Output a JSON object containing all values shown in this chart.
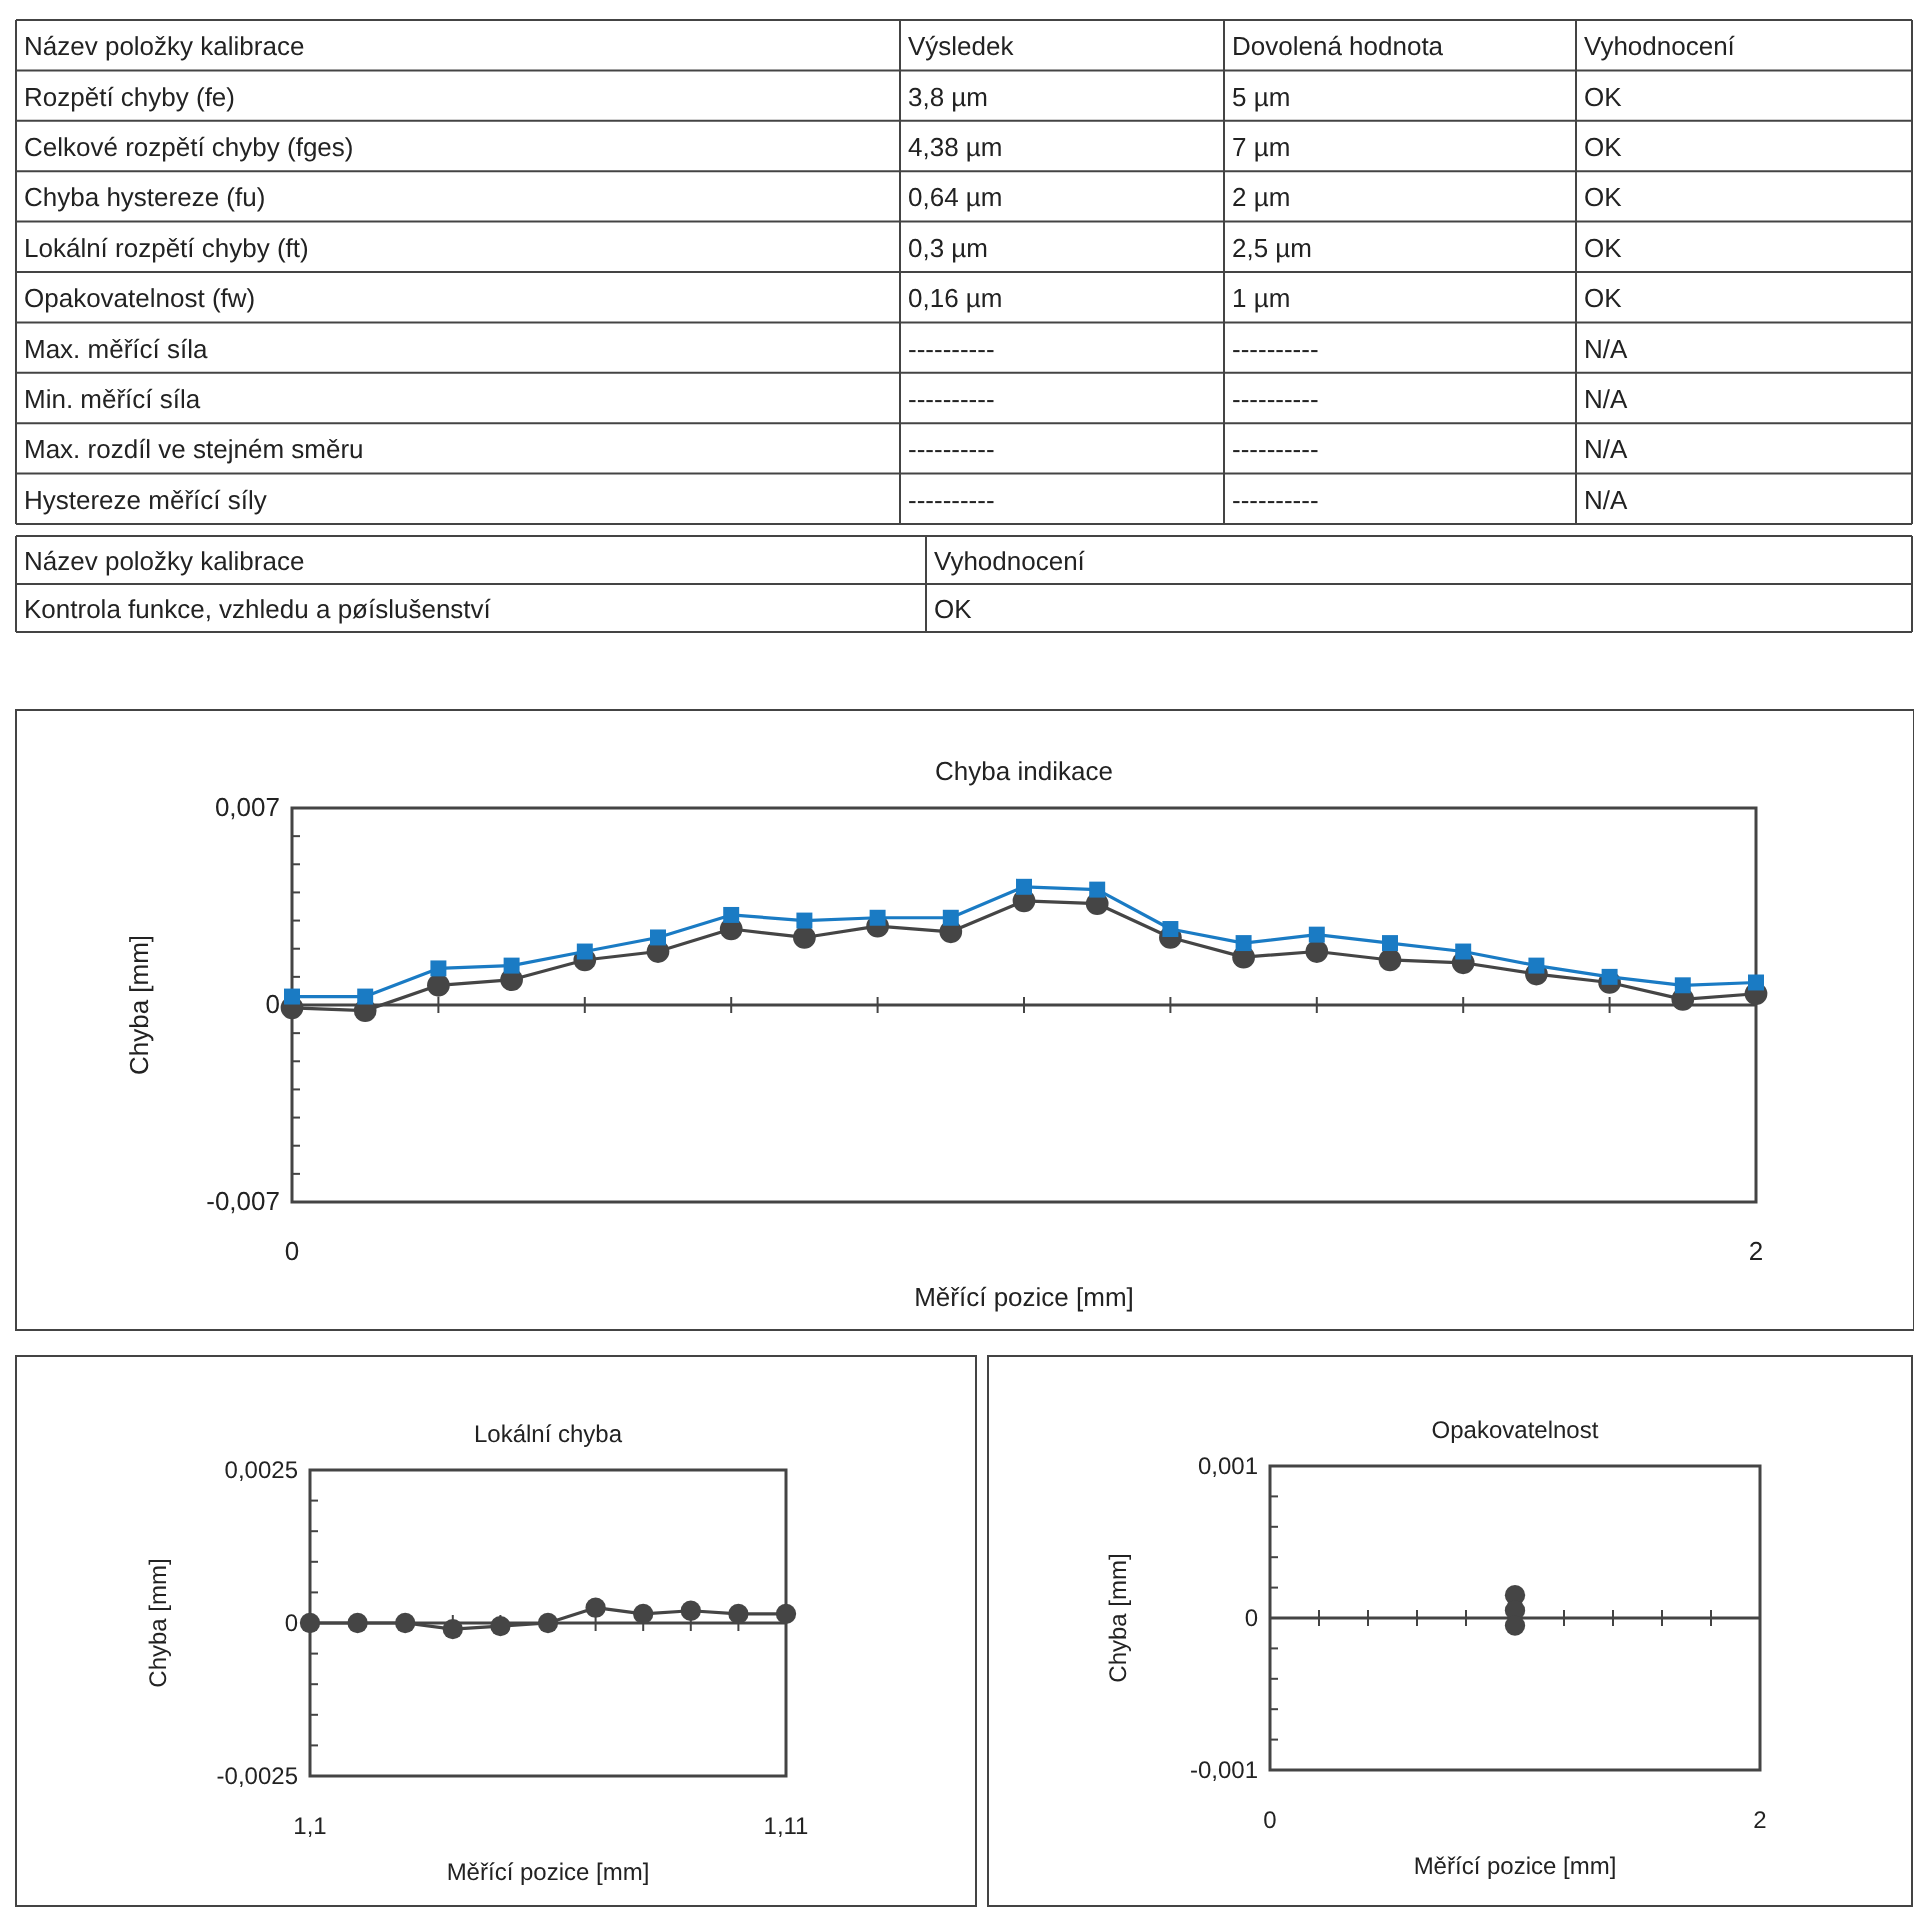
{
  "chart_data": [
    {
      "type": "other",
      "annotations": [
        "Název položky kalibrace",
        "Výsledek",
        "Dovolená hodnota",
        "Vyhodnocení",
        "Rozpětí chyby (fe)",
        "3,8 µm",
        "5 µm",
        "OK",
        "Celkové rozpětí chyby (fges)",
        "4,38 µm",
        "7 µm",
        "OK",
        "Chyba hystereze (fu)",
        "0,64 µm",
        "2 µm",
        "OK",
        "Lokální rozpětí chyby (ft)",
        "0,3 µm",
        "2,5 µm",
        "OK",
        "Opakovatelnost (fw)",
        "0,16 µm",
        "1 µm",
        "OK",
        "Max. měřící síla",
        "----------",
        "----------",
        "N/A",
        "Min. měřící síla",
        "----------",
        "----------",
        "N/A",
        "Max. rozdíl ve stejném směru",
        "----------",
        "----------",
        "N/A",
        "Hystereze měřící síly",
        "----------",
        "----------",
        "N/A"
      ]
    },
    {
      "type": "other",
      "annotations": [
        "Název položky kalibrace",
        "Vyhodnocení",
        "Kontrola funkce, vzhledu a pøíslušenství",
        "OK"
      ]
    },
    {
      "type": "line",
      "title": "Chyba indikace",
      "xlabel": "Měřící pozice [mm]",
      "ylabel": "Chyba [mm]",
      "x": [
        0,
        0.1,
        0.2,
        0.3,
        0.4,
        0.5,
        0.6,
        0.7,
        0.8,
        0.9,
        1.0,
        1.1,
        1.2,
        1.3,
        1.4,
        1.5,
        1.6,
        1.7,
        1.8,
        1.9,
        2.0
      ],
      "series": [
        {
          "color": "#454545",
          "marker": "circle",
          "values": [
            -0.0001,
            -0.0002,
            0.0007,
            0.0009,
            0.0016,
            0.0019,
            0.0027,
            0.0024,
            0.0028,
            0.0026,
            0.0037,
            0.0036,
            0.0024,
            0.0017,
            0.0019,
            0.0016,
            0.0015,
            0.0011,
            0.0008,
            0.0002,
            0.0004
          ]
        },
        {
          "color": "#1a7bc4",
          "marker": "square",
          "values": [
            0.0003,
            0.0003,
            0.0013,
            0.0014,
            0.0019,
            0.0024,
            0.0032,
            0.003,
            0.0031,
            0.0031,
            0.0042,
            0.0041,
            0.0027,
            0.0022,
            0.0025,
            0.0022,
            0.0019,
            0.0014,
            0.001,
            0.0007,
            0.0008
          ]
        }
      ],
      "xlim": [
        0,
        2
      ],
      "xticks": [
        {
          "value": 0,
          "label": "0"
        },
        {
          "value": 0.2,
          "label": null
        },
        {
          "value": 0.4,
          "label": null
        },
        {
          "value": 0.6,
          "label": null
        },
        {
          "value": 0.8,
          "label": null
        },
        {
          "value": 1.0,
          "label": null
        },
        {
          "value": 1.2,
          "label": null
        },
        {
          "value": 1.4,
          "label": null
        },
        {
          "value": 1.6,
          "label": null
        },
        {
          "value": 1.8,
          "label": null
        },
        {
          "value": 2,
          "label": "2"
        }
      ],
      "ylim": [
        -0.007,
        0.007
      ],
      "yticks": [
        {
          "value": -0.007,
          "label": "-0,007"
        },
        {
          "value": -0.006,
          "label": null
        },
        {
          "value": -0.005,
          "label": null
        },
        {
          "value": -0.004,
          "label": null
        },
        {
          "value": -0.003,
          "label": null
        },
        {
          "value": -0.002,
          "label": null
        },
        {
          "value": -0.001,
          "label": null
        },
        {
          "value": 0,
          "label": "0"
        },
        {
          "value": 0.001,
          "label": null
        },
        {
          "value": 0.002,
          "label": null
        },
        {
          "value": 0.003,
          "label": null
        },
        {
          "value": 0.004,
          "label": null
        },
        {
          "value": 0.005,
          "label": null
        },
        {
          "value": 0.006,
          "label": null
        },
        {
          "value": 0.007,
          "label": "0,007"
        }
      ],
      "ref_lines": [
        {
          "axis": "y",
          "value": 0
        }
      ],
      "line_style": "solid"
    },
    {
      "type": "line",
      "title": "Lokální chyba",
      "xlabel": "Měřící pozice [mm]",
      "ylabel": "Chyba [mm]",
      "x": [
        1.1,
        1.101,
        1.102,
        1.103,
        1.104,
        1.105,
        1.106,
        1.107,
        1.108,
        1.109,
        1.11
      ],
      "series": [
        {
          "color": "#454545",
          "marker": "circle",
          "values": [
            0,
            0,
            0,
            -0.0001,
            -5e-05,
            0,
            0.00025,
            0.00015,
            0.0002,
            0.00015,
            0.00015
          ]
        }
      ],
      "xlim": [
        1.1,
        1.11
      ],
      "xticks": [
        {
          "value": 1.1,
          "label": "1,1"
        },
        {
          "value": 1.101,
          "label": null
        },
        {
          "value": 1.102,
          "label": null
        },
        {
          "value": 1.103,
          "label": null
        },
        {
          "value": 1.104,
          "label": null
        },
        {
          "value": 1.105,
          "label": null
        },
        {
          "value": 1.106,
          "label": null
        },
        {
          "value": 1.107,
          "label": null
        },
        {
          "value": 1.108,
          "label": null
        },
        {
          "value": 1.109,
          "label": null
        },
        {
          "value": 1.11,
          "label": "1,11"
        }
      ],
      "ylim": [
        -0.0025,
        0.0025
      ],
      "yticks": [
        {
          "value": -0.0025,
          "label": "-0,0025"
        },
        {
          "value": -0.002,
          "label": null
        },
        {
          "value": -0.0015,
          "label": null
        },
        {
          "value": -0.001,
          "label": null
        },
        {
          "value": -0.0005,
          "label": null
        },
        {
          "value": 0,
          "label": "0"
        },
        {
          "value": 0.0005,
          "label": null
        },
        {
          "value": 0.001,
          "label": null
        },
        {
          "value": 0.0015,
          "label": null
        },
        {
          "value": 0.002,
          "label": null
        },
        {
          "value": 0.0025,
          "label": "0,0025"
        }
      ],
      "ref_lines": [
        {
          "axis": "y",
          "value": 0
        }
      ],
      "line_style": "solid"
    },
    {
      "type": "scatter",
      "title": "Opakovatelnost",
      "xlabel": "Měřící pozice [mm]",
      "ylabel": "Chyba [mm]",
      "x": [
        1,
        1,
        1
      ],
      "series": [
        {
          "color": "#454545",
          "marker": "circle",
          "values": [
            0.00015,
            5e-05,
            -5e-05
          ]
        }
      ],
      "xlim": [
        0,
        2
      ],
      "xticks": [
        {
          "value": 0,
          "label": "0"
        },
        {
          "value": 0.2,
          "label": null
        },
        {
          "value": 0.4,
          "label": null
        },
        {
          "value": 0.6,
          "label": null
        },
        {
          "value": 0.8,
          "label": null
        },
        {
          "value": 1.0,
          "label": null
        },
        {
          "value": 1.2,
          "label": null
        },
        {
          "value": 1.4,
          "label": null
        },
        {
          "value": 1.6,
          "label": null
        },
        {
          "value": 1.8,
          "label": null
        },
        {
          "value": 2,
          "label": "2"
        }
      ],
      "ylim": [
        -0.001,
        0.001
      ],
      "yticks": [
        {
          "value": -0.001,
          "label": "-0,001"
        },
        {
          "value": -0.0008,
          "label": null
        },
        {
          "value": -0.0006,
          "label": null
        },
        {
          "value": -0.0004,
          "label": null
        },
        {
          "value": -0.0002,
          "label": null
        },
        {
          "value": 0,
          "label": "0"
        },
        {
          "value": 0.0002,
          "label": null
        },
        {
          "value": 0.0004,
          "label": null
        },
        {
          "value": 0.0006,
          "label": null
        },
        {
          "value": 0.0008,
          "label": null
        },
        {
          "value": 0.001,
          "label": "0,001"
        }
      ],
      "ref_lines": [
        {
          "axis": "y",
          "value": 0
        }
      ]
    }
  ]
}
